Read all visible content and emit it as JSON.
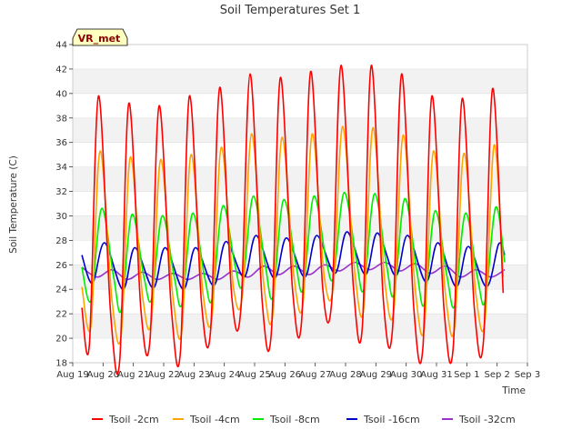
{
  "chart_data": {
    "type": "line",
    "title": "Soil Temperatures Set 1",
    "xlabel": "Time",
    "ylabel": "Soil Temperature (C)",
    "ylim": [
      18,
      44
    ],
    "yticks": [
      18,
      20,
      22,
      24,
      26,
      28,
      30,
      32,
      34,
      36,
      38,
      40,
      42,
      44
    ],
    "xlim": [
      19,
      34
    ],
    "xticks": [
      {
        "v": 19,
        "label": "Aug 19"
      },
      {
        "v": 20,
        "label": "Aug 20"
      },
      {
        "v": 21,
        "label": "Aug 21"
      },
      {
        "v": 22,
        "label": "Aug 22"
      },
      {
        "v": 23,
        "label": "Aug 23"
      },
      {
        "v": 24,
        "label": "Aug 24"
      },
      {
        "v": 25,
        "label": "Aug 25"
      },
      {
        "v": 26,
        "label": "Aug 26"
      },
      {
        "v": 27,
        "label": "Aug 27"
      },
      {
        "v": 28,
        "label": "Aug 28"
      },
      {
        "v": 29,
        "label": "Aug 29"
      },
      {
        "v": 30,
        "label": "Aug 30"
      },
      {
        "v": 31,
        "label": "Aug 31"
      },
      {
        "v": 32,
        "label": "Sep 1"
      },
      {
        "v": 33,
        "label": "Sep 2"
      },
      {
        "v": 34,
        "label": "Sep 3"
      }
    ],
    "annotation": "VR_met",
    "grid": "horizontal bands",
    "legend_position": "bottom",
    "series": [
      {
        "name": "Tsoil -2cm",
        "color": "#ff0000",
        "points": [
          [
            19.3,
            22.5
          ],
          [
            19.55,
            19.5
          ],
          [
            19.85,
            39.8
          ],
          [
            20.25,
            22.0
          ],
          [
            20.55,
            18.2
          ],
          [
            20.85,
            39.2
          ],
          [
            21.25,
            22.3
          ],
          [
            21.55,
            19.9
          ],
          [
            21.85,
            39.0
          ],
          [
            22.25,
            22.5
          ],
          [
            22.55,
            18.8
          ],
          [
            22.85,
            39.8
          ],
          [
            23.25,
            22.8
          ],
          [
            23.55,
            20.7
          ],
          [
            23.85,
            40.5
          ],
          [
            24.25,
            23.3
          ],
          [
            24.55,
            22.5
          ],
          [
            24.85,
            41.6
          ],
          [
            25.25,
            23.0
          ],
          [
            25.55,
            20.4
          ],
          [
            25.85,
            41.3
          ],
          [
            26.25,
            24.0
          ],
          [
            26.55,
            21.4
          ],
          [
            26.85,
            41.8
          ],
          [
            27.25,
            24.0
          ],
          [
            27.55,
            23.2
          ],
          [
            27.85,
            42.3
          ],
          [
            28.25,
            24.5
          ],
          [
            28.55,
            20.8
          ],
          [
            28.85,
            42.3
          ],
          [
            29.25,
            23.0
          ],
          [
            29.55,
            20.8
          ],
          [
            29.85,
            41.6
          ],
          [
            30.25,
            22.5
          ],
          [
            30.55,
            19.2
          ],
          [
            30.85,
            39.8
          ],
          [
            31.25,
            22.3
          ],
          [
            31.55,
            19.2
          ],
          [
            31.85,
            39.6
          ],
          [
            32.25,
            22.4
          ],
          [
            32.55,
            19.8
          ],
          [
            32.85,
            40.4
          ],
          [
            33.2,
            23.7
          ]
        ]
      },
      {
        "name": "Tsoil -4cm",
        "color": "#ffa500",
        "points": [
          [
            19.3,
            24.2
          ],
          [
            19.6,
            21.0
          ],
          [
            19.9,
            35.3
          ],
          [
            20.3,
            23.0
          ],
          [
            20.6,
            20.3
          ],
          [
            20.9,
            34.8
          ],
          [
            21.3,
            23.5
          ],
          [
            21.6,
            21.5
          ],
          [
            21.9,
            34.6
          ],
          [
            22.3,
            23.5
          ],
          [
            22.6,
            20.6
          ],
          [
            22.9,
            35.0
          ],
          [
            23.3,
            23.6
          ],
          [
            23.6,
            21.8
          ],
          [
            23.9,
            35.6
          ],
          [
            24.3,
            24.2
          ],
          [
            24.6,
            23.6
          ],
          [
            24.9,
            36.7
          ],
          [
            25.3,
            24.5
          ],
          [
            25.6,
            21.9
          ],
          [
            25.9,
            36.4
          ],
          [
            26.3,
            25.0
          ],
          [
            26.6,
            22.9
          ],
          [
            26.9,
            36.7
          ],
          [
            27.3,
            25.0
          ],
          [
            27.6,
            24.3
          ],
          [
            27.9,
            37.3
          ],
          [
            28.3,
            25.5
          ],
          [
            28.6,
            22.4
          ],
          [
            28.9,
            37.2
          ],
          [
            29.3,
            24.5
          ],
          [
            29.6,
            22.4
          ],
          [
            29.9,
            36.6
          ],
          [
            30.3,
            24.0
          ],
          [
            30.6,
            20.9
          ],
          [
            30.9,
            35.3
          ],
          [
            31.3,
            23.5
          ],
          [
            31.6,
            20.9
          ],
          [
            31.9,
            35.1
          ],
          [
            32.3,
            23.6
          ],
          [
            32.6,
            21.4
          ],
          [
            32.9,
            35.8
          ],
          [
            33.2,
            25.0
          ]
        ]
      },
      {
        "name": "Tsoil -8cm",
        "color": "#00ee00",
        "points": [
          [
            19.3,
            25.8
          ],
          [
            19.6,
            23.1
          ],
          [
            19.95,
            30.6
          ],
          [
            20.35,
            25.0
          ],
          [
            20.6,
            22.3
          ],
          [
            20.95,
            30.1
          ],
          [
            21.35,
            25.0
          ],
          [
            21.6,
            23.2
          ],
          [
            21.95,
            30.0
          ],
          [
            22.35,
            25.0
          ],
          [
            22.6,
            22.8
          ],
          [
            22.95,
            30.2
          ],
          [
            23.35,
            25.0
          ],
          [
            23.6,
            23.2
          ],
          [
            23.95,
            30.8
          ],
          [
            24.35,
            26.0
          ],
          [
            24.6,
            24.4
          ],
          [
            24.95,
            31.6
          ],
          [
            25.35,
            26.0
          ],
          [
            25.6,
            23.4
          ],
          [
            25.95,
            31.3
          ],
          [
            26.35,
            26.2
          ],
          [
            26.6,
            24.0
          ],
          [
            26.95,
            31.6
          ],
          [
            27.35,
            26.5
          ],
          [
            27.6,
            25.0
          ],
          [
            27.95,
            31.9
          ],
          [
            28.35,
            26.5
          ],
          [
            28.6,
            24.0
          ],
          [
            28.95,
            31.8
          ],
          [
            29.35,
            26.0
          ],
          [
            29.6,
            23.6
          ],
          [
            29.95,
            31.4
          ],
          [
            30.35,
            25.5
          ],
          [
            30.6,
            22.8
          ],
          [
            30.95,
            30.4
          ],
          [
            31.35,
            25.0
          ],
          [
            31.6,
            22.7
          ],
          [
            31.95,
            30.2
          ],
          [
            32.35,
            25.0
          ],
          [
            32.6,
            23.0
          ],
          [
            32.95,
            30.7
          ],
          [
            33.25,
            26.2
          ]
        ]
      },
      {
        "name": "Tsoil -16cm",
        "color": "#0000cc",
        "points": [
          [
            19.3,
            26.8
          ],
          [
            19.65,
            24.5
          ],
          [
            20.05,
            27.8
          ],
          [
            20.65,
            24.0
          ],
          [
            21.05,
            27.4
          ],
          [
            21.65,
            24.1
          ],
          [
            22.05,
            27.4
          ],
          [
            22.65,
            24.0
          ],
          [
            23.05,
            27.4
          ],
          [
            23.65,
            24.3
          ],
          [
            24.05,
            27.9
          ],
          [
            24.65,
            25.0
          ],
          [
            25.05,
            28.4
          ],
          [
            25.65,
            24.9
          ],
          [
            26.05,
            28.2
          ],
          [
            26.65,
            25.0
          ],
          [
            27.05,
            28.4
          ],
          [
            27.65,
            25.3
          ],
          [
            28.05,
            28.7
          ],
          [
            28.65,
            25.2
          ],
          [
            29.05,
            28.6
          ],
          [
            29.65,
            25.1
          ],
          [
            30.05,
            28.4
          ],
          [
            30.65,
            24.6
          ],
          [
            31.05,
            27.8
          ],
          [
            31.65,
            24.2
          ],
          [
            32.05,
            27.5
          ],
          [
            32.65,
            24.2
          ],
          [
            33.05,
            27.7
          ],
          [
            33.25,
            26.8
          ]
        ]
      },
      {
        "name": "Tsoil -32cm",
        "color": "#9932cc",
        "points": [
          [
            19.3,
            25.8
          ],
          [
            19.8,
            25.0
          ],
          [
            20.3,
            25.6
          ],
          [
            20.8,
            24.8
          ],
          [
            21.3,
            25.4
          ],
          [
            21.8,
            24.8
          ],
          [
            22.3,
            25.3
          ],
          [
            22.8,
            24.8
          ],
          [
            23.3,
            25.3
          ],
          [
            23.8,
            24.8
          ],
          [
            24.3,
            25.5
          ],
          [
            24.8,
            25.0
          ],
          [
            25.3,
            25.9
          ],
          [
            25.8,
            25.2
          ],
          [
            26.3,
            25.9
          ],
          [
            26.8,
            25.2
          ],
          [
            27.3,
            26.0
          ],
          [
            27.8,
            25.5
          ],
          [
            28.3,
            26.2
          ],
          [
            28.8,
            25.6
          ],
          [
            29.3,
            26.2
          ],
          [
            29.8,
            25.5
          ],
          [
            30.3,
            26.1
          ],
          [
            30.8,
            25.3
          ],
          [
            31.3,
            25.9
          ],
          [
            31.8,
            25.0
          ],
          [
            32.3,
            25.6
          ],
          [
            32.8,
            25.0
          ],
          [
            33.25,
            25.6
          ]
        ]
      }
    ]
  }
}
